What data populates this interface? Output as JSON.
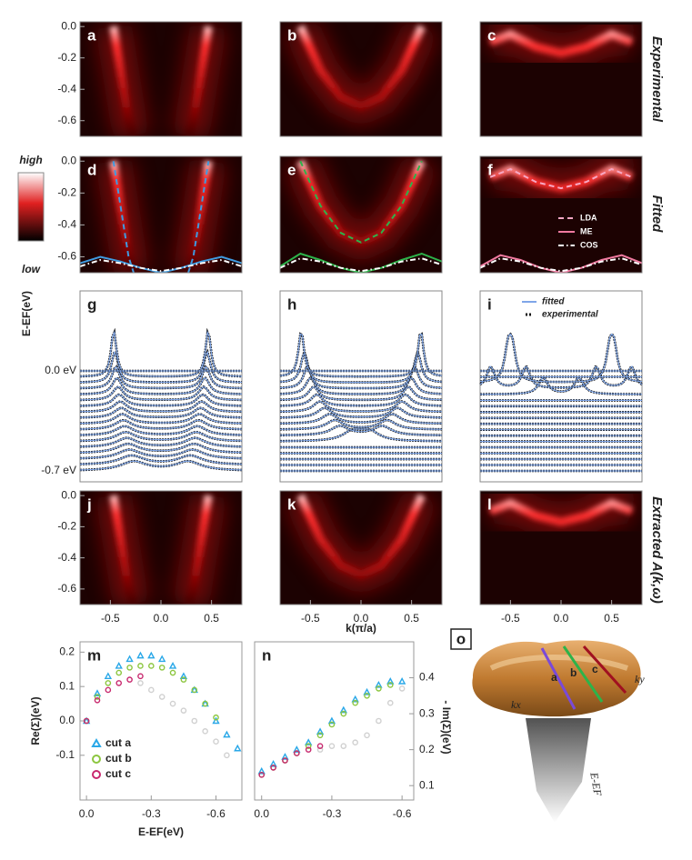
{
  "chart_data": [
    {
      "type": "heatmap",
      "label": "a",
      "xlim": [
        -0.8,
        0.8
      ],
      "ylim": [
        -0.7,
        0.03
      ],
      "yticks": [
        {
          "value": 0,
          "label": "0.0"
        },
        -0.2,
        -0.4,
        -0.6
      ]
    },
    {
      "type": "heatmap",
      "label": "b",
      "xlim": [
        -0.8,
        0.8
      ],
      "ylim": [
        -0.7,
        0.03
      ]
    },
    {
      "type": "heatmap",
      "label": "c",
      "xlim": [
        -0.8,
        0.8
      ],
      "ylim": [
        -0.7,
        0.03
      ]
    },
    {
      "type": "line",
      "label": "d",
      "xlim": [
        -0.8,
        0.8
      ],
      "ylim": [
        -0.7,
        0.03
      ],
      "yticks": [
        {
          "value": 0,
          "label": "0.0"
        },
        -0.2,
        -0.4,
        -0.6
      ],
      "series": [
        {
          "color": "#3f9be0",
          "style": "dashed",
          "x": [
            -0.47,
            -0.42,
            -0.37,
            -0.32,
            -0.27,
            null,
            0.27,
            0.32,
            0.37,
            0.42,
            0.47
          ],
          "y": [
            0,
            -0.2,
            -0.4,
            -0.6,
            -0.7,
            null,
            -0.7,
            -0.6,
            -0.4,
            -0.2,
            0
          ]
        },
        {
          "color": "#3f9be0",
          "style": "solid",
          "x": [
            -0.8,
            -0.6,
            -0.4,
            -0.2,
            0,
            0.2,
            0.4,
            0.6,
            0.8
          ],
          "y": [
            -0.64,
            -0.6,
            -0.63,
            -0.67,
            -0.7,
            -0.67,
            -0.63,
            -0.6,
            -0.64
          ]
        },
        {
          "color": "#ffffff",
          "style": "dashdot",
          "x": [
            -0.8,
            -0.6,
            -0.4,
            -0.2,
            0,
            0.2,
            0.4,
            0.6,
            0.8
          ],
          "y": [
            -0.66,
            -0.62,
            -0.64,
            -0.67,
            -0.69,
            -0.67,
            -0.64,
            -0.62,
            -0.66
          ]
        }
      ]
    },
    {
      "type": "line",
      "label": "e",
      "xlim": [
        -0.8,
        0.8
      ],
      "ylim": [
        -0.7,
        0.03
      ],
      "series": [
        {
          "color": "#2db34a",
          "style": "dashed",
          "x": [
            -0.6,
            -0.4,
            -0.2,
            0,
            0.2,
            0.4,
            0.6
          ],
          "y": [
            0,
            -0.28,
            -0.45,
            -0.51,
            -0.45,
            -0.28,
            0
          ]
        },
        {
          "color": "#2db34a",
          "style": "solid",
          "x": [
            -0.8,
            -0.6,
            -0.4,
            -0.2,
            0,
            0.2,
            0.4,
            0.6,
            0.8
          ],
          "y": [
            -0.66,
            -0.58,
            -0.62,
            -0.67,
            -0.7,
            -0.67,
            -0.62,
            -0.58,
            -0.63
          ]
        },
        {
          "color": "#ffffff",
          "style": "dashdot",
          "x": [
            -0.8,
            -0.6,
            -0.4,
            -0.2,
            0,
            0.2,
            0.4,
            0.6,
            0.8
          ],
          "y": [
            -0.67,
            -0.61,
            -0.63,
            -0.67,
            -0.69,
            -0.67,
            -0.63,
            -0.61,
            -0.65
          ]
        }
      ]
    },
    {
      "type": "line",
      "label": "f",
      "xlim": [
        -0.8,
        0.8
      ],
      "ylim": [
        -0.7,
        0.03
      ],
      "series": [
        {
          "name": "LDA",
          "color": "#f7a8c4",
          "style": "dashed",
          "x": [
            -0.7,
            -0.5,
            -0.25,
            0,
            0.25,
            0.5,
            0.7
          ],
          "y": [
            -0.1,
            -0.05,
            -0.13,
            -0.17,
            -0.13,
            -0.05,
            -0.1
          ]
        },
        {
          "name": "ME",
          "color": "#f07aa0",
          "style": "solid",
          "x": [
            -0.8,
            -0.6,
            -0.4,
            -0.2,
            0,
            0.2,
            0.4,
            0.6,
            0.8
          ],
          "y": [
            -0.66,
            -0.59,
            -0.62,
            -0.67,
            -0.7,
            -0.67,
            -0.62,
            -0.59,
            -0.64
          ]
        },
        {
          "name": "COS",
          "color": "#ffffff",
          "style": "dashdot",
          "x": [
            -0.8,
            -0.6,
            -0.4,
            -0.2,
            0,
            0.2,
            0.4,
            0.6,
            0.8
          ],
          "y": [
            -0.67,
            -0.61,
            -0.63,
            -0.67,
            -0.69,
            -0.67,
            -0.63,
            -0.61,
            -0.65
          ]
        }
      ]
    },
    {
      "type": "edc",
      "label": "g",
      "annotations": [
        "0.0 eV",
        "-0.7 eV"
      ]
    },
    {
      "type": "edc",
      "label": "h"
    },
    {
      "type": "edc",
      "label": "i",
      "legend": [
        "fitted",
        "experimental"
      ]
    },
    {
      "type": "heatmap",
      "label": "j",
      "xlim": [
        -0.8,
        0.8
      ],
      "ylim": [
        -0.7,
        0.03
      ],
      "yticks": [
        {
          "value": 0,
          "label": "0.0"
        },
        -0.2,
        -0.4,
        -0.6
      ],
      "xticks": [
        -0.5,
        {
          "value": 0,
          "label": "0.0"
        },
        0.5
      ]
    },
    {
      "type": "heatmap",
      "label": "k",
      "xlim": [
        -0.8,
        0.8
      ],
      "ylim": [
        -0.7,
        0.03
      ],
      "xticks": [
        -0.5,
        {
          "value": 0,
          "label": "0.0"
        },
        0.5
      ]
    },
    {
      "type": "heatmap",
      "label": "l",
      "xlim": [
        -0.8,
        0.8
      ],
      "ylim": [
        -0.7,
        0.03
      ],
      "xticks": [
        -0.5,
        {
          "value": 0,
          "label": "0.0"
        },
        0.5
      ]
    },
    {
      "type": "scatter",
      "label": "m",
      "xlim": [
        0.03,
        -0.72
      ],
      "ylim": [
        -0.23,
        0.23
      ],
      "xticks": [
        {
          "value": 0,
          "label": "0.0"
        },
        -0.3,
        -0.6
      ],
      "yticks": [
        0.2,
        0.1,
        {
          "value": 0,
          "label": "0.0"
        },
        -0.1
      ],
      "ylabel": "Re(Σ)(eV)",
      "xlabel": "E-EF(eV)",
      "series": [
        {
          "color": "#d0d0d0",
          "marker": "circle",
          "x": [
            -0.25,
            -0.3,
            -0.35,
            -0.4,
            -0.45,
            -0.5,
            -0.55,
            -0.6,
            -0.65
          ],
          "y": [
            0.11,
            0.09,
            0.07,
            0.05,
            0.03,
            0,
            -0.03,
            -0.06,
            -0.1
          ]
        },
        {
          "name": "cut a",
          "color": "#2aa8e8",
          "marker": "triangle",
          "x": [
            0,
            -0.05,
            -0.1,
            -0.15,
            -0.2,
            -0.25,
            -0.3,
            -0.35,
            -0.4,
            -0.45,
            -0.5,
            -0.55,
            -0.6,
            -0.65,
            -0.7
          ],
          "y": [
            0,
            0.08,
            0.13,
            0.16,
            0.18,
            0.19,
            0.19,
            0.18,
            0.16,
            0.13,
            0.09,
            0.05,
            0,
            -0.04,
            -0.08
          ]
        },
        {
          "name": "cut b",
          "color": "#8cc63f",
          "marker": "circle",
          "x": [
            0,
            -0.05,
            -0.1,
            -0.15,
            -0.2,
            -0.25,
            -0.3,
            -0.35,
            -0.4,
            -0.45,
            -0.5,
            -0.55,
            -0.6
          ],
          "y": [
            0,
            0.07,
            0.11,
            0.14,
            0.155,
            0.16,
            0.16,
            0.155,
            0.14,
            0.12,
            0.09,
            0.05,
            0.01
          ]
        },
        {
          "name": "cut c",
          "color": "#c8286e",
          "marker": "circle",
          "x": [
            0,
            -0.05,
            -0.1,
            -0.15,
            -0.2,
            -0.25
          ],
          "y": [
            0,
            0.06,
            0.09,
            0.11,
            0.12,
            0.13
          ]
        }
      ]
    },
    {
      "type": "scatter",
      "label": "n",
      "xlim": [
        0.03,
        -0.65
      ],
      "y2lim": [
        0.06,
        0.5
      ],
      "xticks": [
        {
          "value": 0,
          "label": "0.0"
        },
        -0.3,
        -0.6
      ],
      "y2ticks": [
        0.4,
        0.3,
        0.2,
        0.1
      ],
      "y2label": "- Im(Σ)(eV)",
      "series": [
        {
          "color": "#d0d0d0",
          "marker": "circle",
          "axis": "y2",
          "x": [
            -0.25,
            -0.3,
            -0.35,
            -0.4,
            -0.45,
            -0.5,
            -0.55,
            -0.6
          ],
          "y": [
            0.2,
            0.21,
            0.21,
            0.22,
            0.24,
            0.28,
            0.33,
            0.37
          ]
        },
        {
          "color": "#2aa8e8",
          "marker": "triangle",
          "axis": "y2",
          "x": [
            0,
            -0.05,
            -0.1,
            -0.15,
            -0.2,
            -0.25,
            -0.3,
            -0.35,
            -0.4,
            -0.45,
            -0.5,
            -0.55,
            -0.6
          ],
          "y": [
            0.14,
            0.16,
            0.18,
            0.2,
            0.22,
            0.25,
            0.28,
            0.31,
            0.34,
            0.36,
            0.38,
            0.39,
            0.39
          ]
        },
        {
          "color": "#8cc63f",
          "marker": "circle",
          "axis": "y2",
          "x": [
            0,
            -0.05,
            -0.1,
            -0.15,
            -0.2,
            -0.25,
            -0.3,
            -0.35,
            -0.4,
            -0.45,
            -0.5,
            -0.55
          ],
          "y": [
            0.13,
            0.15,
            0.17,
            0.19,
            0.21,
            0.24,
            0.27,
            0.3,
            0.33,
            0.35,
            0.37,
            0.38
          ]
        },
        {
          "color": "#c8286e",
          "marker": "circle",
          "axis": "y2",
          "x": [
            0,
            -0.05,
            -0.1,
            -0.15,
            -0.2,
            -0.25
          ],
          "y": [
            0.13,
            0.15,
            0.17,
            0.19,
            0.2,
            0.21
          ]
        }
      ]
    }
  ],
  "row_labels": [
    "Experimental",
    "Fitted",
    "Extracted A(k,ω)"
  ],
  "colorbar": {
    "high": "high",
    "low": "low"
  },
  "xlabel": "k(π/a)",
  "ylabel": "E-EF(eV)",
  "panel_o": {
    "label": "o",
    "cuts": [
      "a",
      "b",
      "c"
    ],
    "kx": "kx",
    "ky": "ky",
    "energy": "E-EF"
  }
}
